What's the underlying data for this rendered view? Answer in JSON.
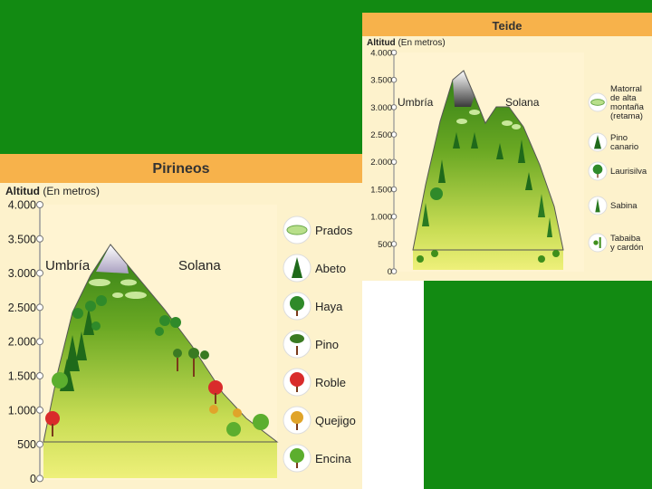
{
  "colors": {
    "background": "#128a12",
    "panel": "#fdf2cc",
    "header": "#f7b24b",
    "mountain_top": "#3f8f1c",
    "mountain_base": "#eaf07a"
  },
  "pirineos": {
    "title": "Pirineos",
    "axis_title": "Altitud",
    "axis_unit": "(En metros)",
    "ticks": [
      "4.000",
      "3.500",
      "3.000",
      "2.500",
      "2.000",
      "1.500",
      "1.000",
      "500",
      "0"
    ],
    "side_left": "Umbría",
    "side_right": "Solana",
    "legend": [
      {
        "label": "Prados",
        "icon": "meadow-icon"
      },
      {
        "label": "Abeto",
        "icon": "fir-tree-icon"
      },
      {
        "label": "Haya",
        "icon": "beech-tree-icon"
      },
      {
        "label": "Pino",
        "icon": "pine-tree-icon"
      },
      {
        "label": "Roble",
        "icon": "oak-tree-icon"
      },
      {
        "label": "Quejigo",
        "icon": "gall-oak-tree-icon"
      },
      {
        "label": "Encina",
        "icon": "holm-oak-tree-icon"
      }
    ]
  },
  "teide": {
    "title": "Teide",
    "axis_title": "Altitud",
    "axis_unit": "(En metros)",
    "ticks": [
      "4.000",
      "3.500",
      "3.000",
      "2.500",
      "2.000",
      "1.500",
      "1.000",
      "500",
      "0"
    ],
    "side_left": "Umbría",
    "side_right": "Solana",
    "legend": [
      {
        "label_lines": [
          "Matorral",
          "de alta",
          "montaña",
          "(retama)"
        ],
        "icon": "broom-shrub-icon"
      },
      {
        "label_lines": [
          "Pino",
          "canario"
        ],
        "icon": "canary-pine-icon"
      },
      {
        "label_lines": [
          "Laurisilva"
        ],
        "icon": "laurel-forest-icon"
      },
      {
        "label_lines": [
          "Sabina"
        ],
        "icon": "juniper-icon"
      },
      {
        "label_lines": [
          "Tabaiba",
          "y cardón"
        ],
        "icon": "spurge-cactus-icon"
      }
    ]
  }
}
